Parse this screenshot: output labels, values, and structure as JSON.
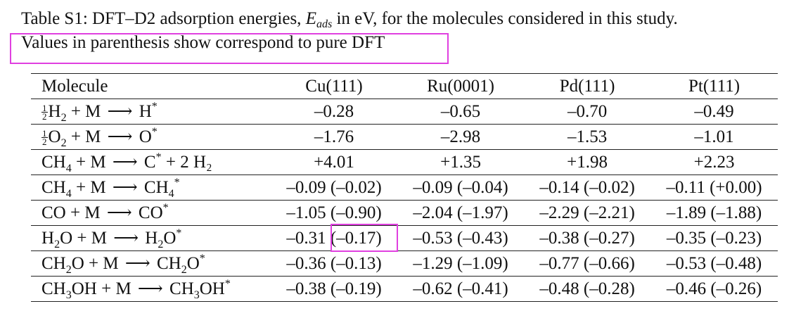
{
  "caption": {
    "line1_before": "Table S1: DFT–D2 adsorption energies, ",
    "symbol": "E",
    "symbol_sub": "ads",
    "line1_after": " in eV, for the molecules considered in this study.",
    "line2": "Values in parenthesis show correspond to pure DFT"
  },
  "table": {
    "headers": [
      "Molecule",
      "Cu(111)",
      "Ru(0001)",
      "Pd(111)",
      "Pt(111)"
    ],
    "rows": [
      {
        "frac": [
          "1",
          "2"
        ],
        "reactant": "H",
        "rsub": "2",
        "middle": " + M ",
        "product": "H",
        "psub": "",
        "psup": "*",
        "extra": "",
        "values": [
          "–0.28",
          "–0.65",
          "–0.70",
          "–0.49"
        ]
      },
      {
        "frac": [
          "1",
          "2"
        ],
        "reactant": "O",
        "rsub": "2",
        "middle": " + M ",
        "product": "O",
        "psub": "",
        "psup": "*",
        "extra": "",
        "values": [
          "–1.76",
          "–2.98",
          "–1.53",
          "–1.01"
        ]
      },
      {
        "frac": null,
        "reactant": "CH",
        "rsub": "4",
        "middle": " + M ",
        "product": "C",
        "psub": "",
        "psup": "*",
        "extra": " + 2 H₂",
        "values": [
          "+4.01",
          "+1.35",
          "+1.98",
          "+2.23"
        ]
      },
      {
        "frac": null,
        "reactant": "CH",
        "rsub": "4",
        "middle": " + M ",
        "product": "CH",
        "psub": "4",
        "psup": "*",
        "extra": "",
        "values": [
          "–0.09 (–0.02)",
          "–0.09 (–0.04)",
          "–0.14 (–0.02)",
          "–0.11 (+0.00)"
        ]
      },
      {
        "frac": null,
        "reactant": "CO",
        "rsub": "",
        "middle": " + M ",
        "product": "CO",
        "psub": "",
        "psup": "*",
        "extra": "",
        "values": [
          "–1.05 (–0.90)",
          "–2.04 (–1.97)",
          "–2.29 (–2.21)",
          "–1.89 (–1.88)"
        ]
      },
      {
        "frac": null,
        "reactant": "H",
        "rsub": "2",
        "rtail": "O",
        "middle": " + M ",
        "product": "H",
        "psub": "2",
        "ptail": "O",
        "psup": "*",
        "extra": "",
        "values": [
          "–0.31 (–0.17)",
          "–0.53 (–0.43)",
          "–0.38 (–0.27)",
          "–0.35 (–0.23)"
        ]
      },
      {
        "frac": null,
        "reactant": "CH",
        "rsub": "2",
        "rtail": "O",
        "middle": " + M ",
        "product": "CH",
        "psub": "2",
        "ptail": "O",
        "psup": "*",
        "extra": "",
        "values": [
          "–0.36 (–0.13)",
          "–1.29 (–1.09)",
          "–0.77 (–0.66)",
          "–0.53 (–0.48)"
        ]
      },
      {
        "frac": null,
        "reactant": "CH",
        "rsub": "3",
        "rtail": "OH",
        "middle": " + M ",
        "product": "CH",
        "psub": "3",
        "ptail": "OH",
        "psup": "*",
        "extra": "",
        "values": [
          "–0.38 (–0.19)",
          "–0.62 (–0.41)",
          "–0.48 (–0.28)",
          "–0.46 (–0.26)"
        ]
      }
    ]
  },
  "arrow": "⟶",
  "highlight_color": "#e040e0"
}
